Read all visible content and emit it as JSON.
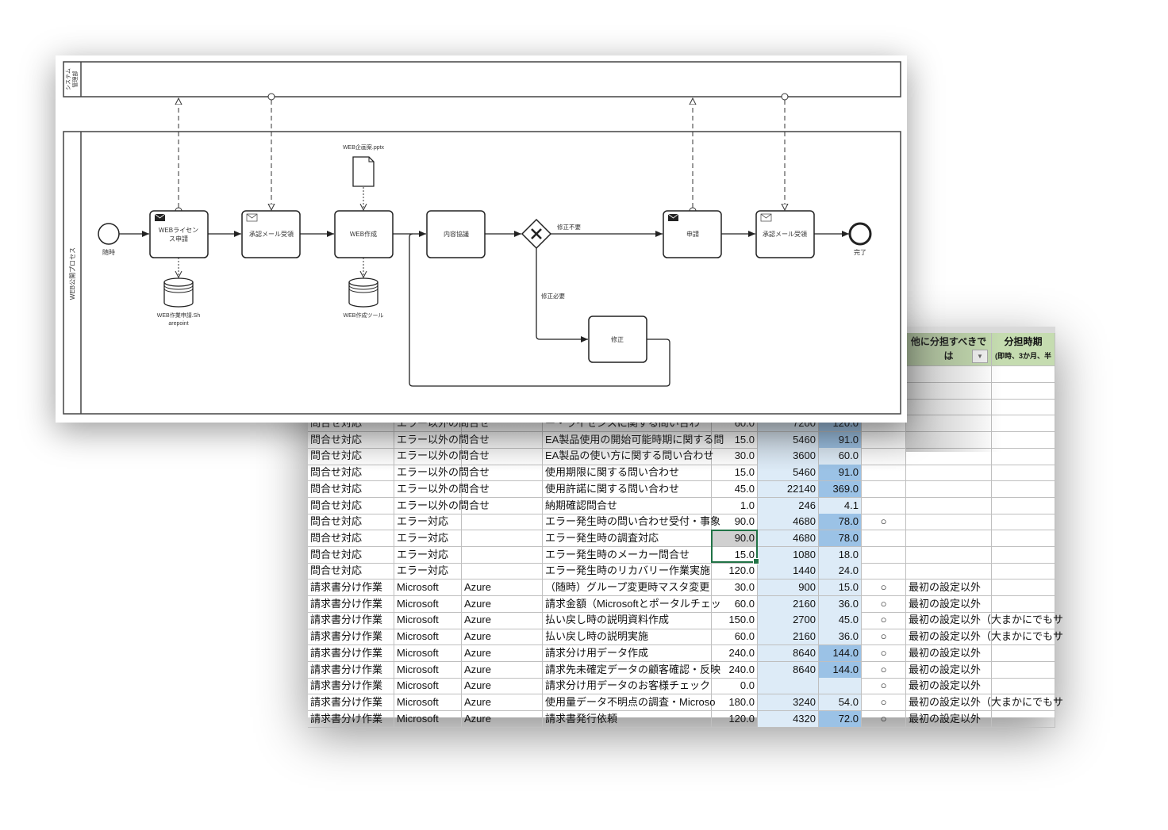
{
  "diagram": {
    "pools": {
      "system_line1": "システム",
      "system_line2": "管理部",
      "process": "WEB公開プロセス"
    },
    "start_event": {
      "label": "随時"
    },
    "end_event": {
      "label": "完了"
    },
    "tasks": [
      {
        "line1": "WEBライセン",
        "line2": "ス申請",
        "icon": "send-envelope-icon"
      },
      {
        "line1": "承認メール受領",
        "icon": "receive-envelope-icon"
      },
      {
        "line1": "WEB作成"
      },
      {
        "line1": "内容協議"
      },
      {
        "line1": "申請",
        "icon": "send-envelope-icon"
      },
      {
        "line1": "承認メール受領",
        "icon": "receive-envelope-icon"
      },
      {
        "line1": "修正"
      }
    ],
    "gateway": {
      "icon": "exclusive-gateway-x-icon",
      "label_yes": "修正不要",
      "label_no": "修正必要"
    },
    "data_object": {
      "label": "WEB企画案.pptx"
    },
    "data_stores": [
      {
        "line1": "WEB作業申請.Sh",
        "line2": "arepoint"
      },
      {
        "line1": "WEB作成ツール"
      }
    ]
  },
  "sheet": {
    "headers": {
      "col_i_line1": "他に分担すべきで",
      "col_i_line2": "は",
      "col_j_line1": "分担時期",
      "col_j_line2": "(即時、3か月、半"
    },
    "colors": {
      "light_blue": "#ddebf7",
      "mid_blue": "#9bc2e6",
      "header_green": "#c5dcb0",
      "selection": "#217346"
    },
    "rows": [
      [
        "問合せ対応",
        "エラー以外の問合せ",
        "",
        "ー・ライセンスに関する問い合わ",
        "60.0",
        "7200",
        "120.0",
        "",
        ""
      ],
      [
        "問合せ対応",
        "エラー以外の問合せ",
        "",
        "EA製品使用の開始可能時期に関する問",
        "15.0",
        "5460",
        "91.0",
        "",
        ""
      ],
      [
        "問合せ対応",
        "エラー以外の問合せ",
        "",
        "EA製品の使い方に関する問い合わせ",
        "30.0",
        "3600",
        "60.0",
        "",
        ""
      ],
      [
        "問合せ対応",
        "エラー以外の問合せ",
        "",
        "使用期限に関する問い合わせ",
        "15.0",
        "5460",
        "91.0",
        "",
        ""
      ],
      [
        "問合せ対応",
        "エラー以外の問合せ",
        "",
        "使用許諾に関する問い合わせ",
        "45.0",
        "22140",
        "369.0",
        "",
        ""
      ],
      [
        "問合せ対応",
        "エラー以外の問合せ",
        "",
        "納期確認問合せ",
        "1.0",
        "246",
        "4.1",
        "",
        ""
      ],
      [
        "問合せ対応",
        "エラー対応",
        "",
        "エラー発生時の問い合わせ受付・事象",
        "90.0",
        "4680",
        "78.0",
        "○",
        ""
      ],
      [
        "問合せ対応",
        "エラー対応",
        "",
        "エラー発生時の調査対応",
        "90.0",
        "4680",
        "78.0",
        "",
        ""
      ],
      [
        "問合せ対応",
        "エラー対応",
        "",
        "エラー発生時のメーカー問合せ",
        "15.0",
        "1080",
        "18.0",
        "",
        ""
      ],
      [
        "問合せ対応",
        "エラー対応",
        "",
        "エラー発生時のリカバリー作業実施",
        "120.0",
        "1440",
        "24.0",
        "",
        ""
      ],
      [
        "請求書分け作業",
        "Microsoft",
        "Azure",
        "（随時）グループ変更時マスタ変更",
        "30.0",
        "900",
        "15.0",
        "○",
        "最初の設定以外"
      ],
      [
        "請求書分け作業",
        "Microsoft",
        "Azure",
        "請求金額（Microsoftとポータルチェッ",
        "60.0",
        "2160",
        "36.0",
        "○",
        "最初の設定以外"
      ],
      [
        "請求書分け作業",
        "Microsoft",
        "Azure",
        "払い戻し時の説明資料作成",
        "150.0",
        "2700",
        "45.0",
        "○",
        "最初の設定以外（大まかにでもサ"
      ],
      [
        "請求書分け作業",
        "Microsoft",
        "Azure",
        "払い戻し時の説明実施",
        "60.0",
        "2160",
        "36.0",
        "○",
        "最初の設定以外（大まかにでもサ"
      ],
      [
        "請求書分け作業",
        "Microsoft",
        "Azure",
        "請求分け用データ作成",
        "240.0",
        "8640",
        "144.0",
        "○",
        "最初の設定以外"
      ],
      [
        "請求書分け作業",
        "Microsoft",
        "Azure",
        "請求先未確定データの顧客確認・反映",
        "240.0",
        "8640",
        "144.0",
        "○",
        "最初の設定以外"
      ],
      [
        "請求書分け作業",
        "Microsoft",
        "Azure",
        "請求分け用データのお客様チェック",
        "0.0",
        "",
        "",
        "○",
        "最初の設定以外"
      ],
      [
        "請求書分け作業",
        "Microsoft",
        "Azure",
        "使用量データ不明点の調査・Microso",
        "180.0",
        "3240",
        "54.0",
        "○",
        "最初の設定以外（大まかにでもサ"
      ],
      [
        "請求書分け作業",
        "Microsoft",
        "Azure",
        "請求書発行依頼",
        "120.0",
        "4320",
        "72.0",
        "○",
        "最初の設定以外"
      ]
    ],
    "highlighted_g_rows": [
      0,
      1,
      3,
      4,
      6,
      7,
      14,
      15,
      18
    ],
    "selected_cell": {
      "row": 7,
      "col": "E"
    },
    "comment_markers": [
      4,
      17
    ]
  }
}
